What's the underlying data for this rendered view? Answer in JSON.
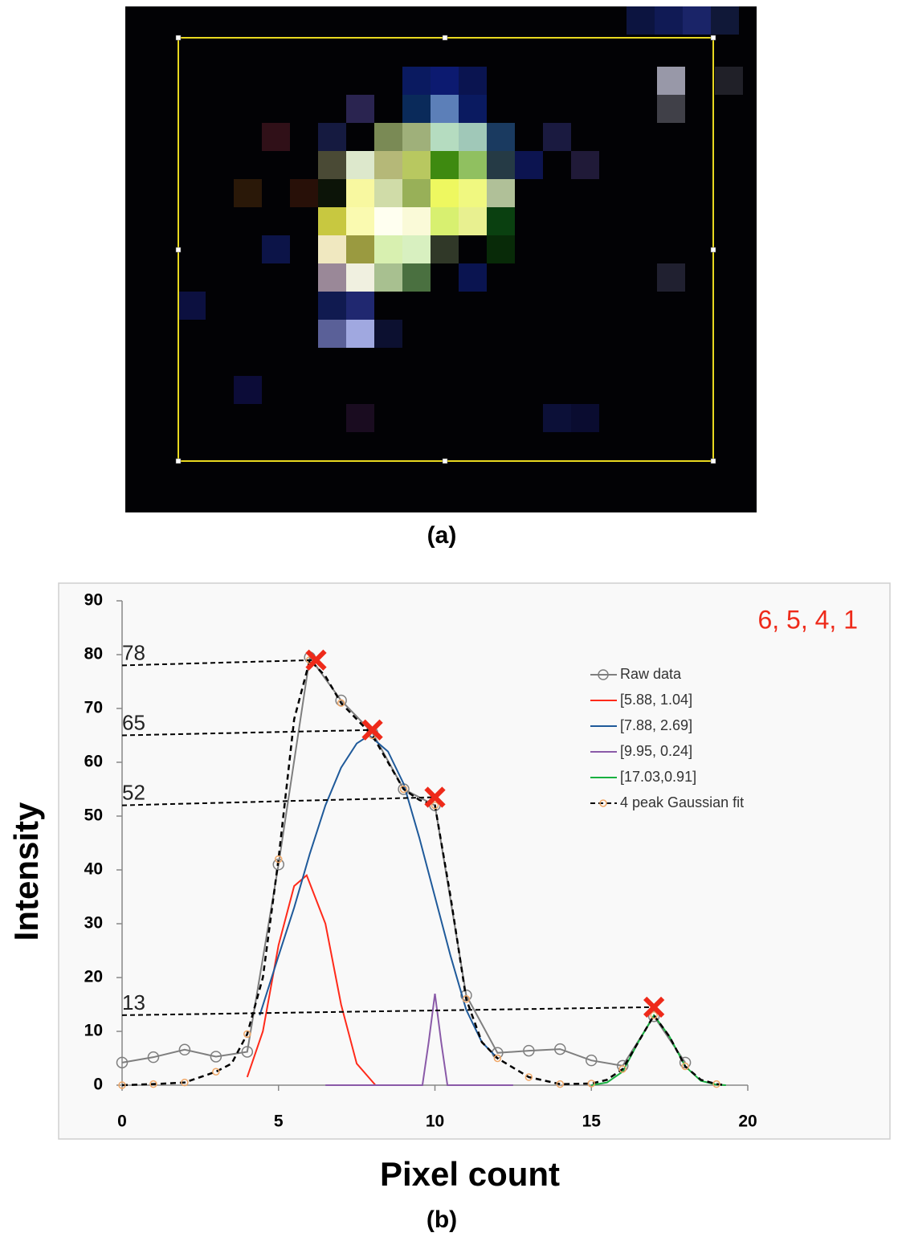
{
  "figure": {
    "panel_a_label": "(a)",
    "panel_b_label": "(b)"
  },
  "chart_data": {
    "type": "line",
    "x_label": "Pixel count",
    "y_label": "Intensity",
    "xlim": [
      0,
      20
    ],
    "xticks": [
      0,
      5,
      10,
      15,
      20
    ],
    "ylim": [
      0,
      90
    ],
    "yticks": [
      0,
      10,
      20,
      30,
      40,
      50,
      60,
      70,
      80,
      90
    ],
    "legend": "upper right",
    "series": [
      {
        "name": "Raw data",
        "color": "#7f7f7f",
        "marker": "circle",
        "x": [
          0,
          1,
          2,
          3,
          4,
          5,
          6,
          7,
          8,
          9,
          10,
          11,
          12,
          13,
          14,
          15,
          16,
          17,
          18
        ],
        "values": [
          4.2,
          5.2,
          6.6,
          5.3,
          6.2,
          41,
          79.5,
          71.5,
          65.5,
          55,
          52,
          16.7,
          6,
          6.4,
          6.7,
          4.6,
          3.6,
          12.8,
          4.2
        ]
      },
      {
        "name": "[5.88, 1.04]",
        "color": "#ff2a1a",
        "x": [
          4,
          4.5,
          5,
          5.5,
          5.9,
          6.5,
          7,
          7.5,
          8.1
        ],
        "values": [
          1.5,
          10,
          26,
          37,
          39,
          30,
          15,
          4,
          0
        ]
      },
      {
        "name": "[7.88, 2.69]",
        "color": "#1f5a9a",
        "x": [
          4.4,
          5,
          5.5,
          6,
          6.5,
          7,
          7.5,
          7.9,
          8.5,
          9,
          9.5,
          10,
          10.5,
          11,
          11.5,
          12
        ],
        "values": [
          13,
          24,
          33,
          43,
          52,
          59,
          63.5,
          65,
          62,
          56,
          46,
          35,
          24,
          14,
          8,
          5
        ]
      },
      {
        "name": "[9.95, 0.24]",
        "color": "#8a5aa8",
        "x": [
          6.5,
          9.6,
          9.8,
          10,
          10.2,
          10.4,
          12.5
        ],
        "values": [
          0,
          0,
          8,
          17,
          8,
          0,
          0
        ]
      },
      {
        "name": "[17.03,0.91]",
        "color": "#18b040",
        "x": [
          15,
          15.5,
          16,
          16.5,
          17,
          17.5,
          18,
          18.5,
          19,
          19.3
        ],
        "values": [
          0,
          0.5,
          2.5,
          8,
          13,
          9,
          3.5,
          0.8,
          0.1,
          0
        ]
      },
      {
        "name": "4 peak Gaussian fit",
        "color": "#000000",
        "dashed": true,
        "marker": "circle",
        "marker_color": "#f0a868",
        "x": [
          0,
          1,
          2,
          3,
          3.5,
          4,
          4.5,
          5,
          5.5,
          6,
          6.5,
          7,
          7.5,
          8,
          8.5,
          9,
          9.5,
          10,
          10.5,
          11,
          11.5,
          12,
          13,
          14,
          15,
          15.5,
          16,
          16.5,
          17,
          17.5,
          18,
          18.5,
          19,
          19.3
        ],
        "values": [
          0,
          0.2,
          0.5,
          2.5,
          4,
          9.5,
          20,
          42,
          68,
          79,
          76,
          71,
          68,
          65,
          60,
          55,
          53,
          52,
          35,
          16,
          8,
          5,
          1.5,
          0.2,
          0.3,
          1,
          3,
          8,
          13,
          9,
          3.5,
          1,
          0.2,
          0
        ]
      }
    ],
    "annotation": "6, 5, 4, 1",
    "peak_labels": [
      78,
      65,
      52,
      13
    ],
    "peak_x": [
      6.2,
      8,
      10,
      17
    ],
    "peak_y": [
      79,
      66,
      53.5,
      14.5
    ]
  }
}
